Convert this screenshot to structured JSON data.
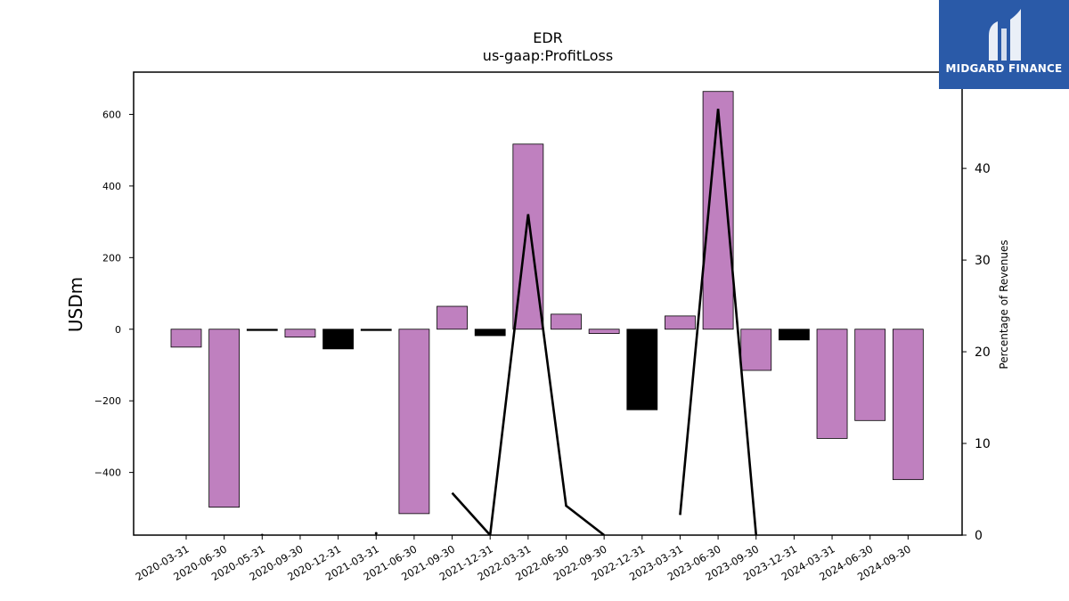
{
  "chart_data": {
    "type": "bar",
    "title": "EDR",
    "subtitle": "us-gaap:ProfitLoss",
    "ylabel": "USDm",
    "y2label": "Percentage of Revenues",
    "ylim": [
      -575,
      718
    ],
    "y2lim": [
      0,
      50.5
    ],
    "yticks": [
      -400,
      -200,
      0,
      200,
      400,
      600
    ],
    "y2ticks": [
      0,
      10,
      20,
      30,
      40
    ],
    "categories": [
      "2020-03-31",
      "2020-06-30",
      "2020-05-31",
      "2020-09-30",
      "2020-12-31",
      "2021-03-31",
      "2021-06-30",
      "2021-09-30",
      "2021-12-31",
      "2022-03-31",
      "2022-06-30",
      "2022-09-30",
      "2022-12-31",
      "2023-03-31",
      "2023-06-30",
      "2023-09-30",
      "2023-12-31",
      "2024-03-31",
      "2024-06-30",
      "2024-09-30"
    ],
    "series": [
      {
        "values": [
          -50,
          -497,
          0,
          -22,
          -55,
          0,
          -515,
          64,
          -18,
          517,
          42,
          -12,
          -225,
          37,
          664,
          -115,
          -30,
          -305,
          -255,
          -420
        ],
        "colors": [
          "#bf80bf",
          "#bf80bf",
          "#000000",
          "#bf80bf",
          "#000000",
          "#000000",
          "#bf80bf",
          "#bf80bf",
          "#000000",
          "#bf80bf",
          "#bf80bf",
          "#bf80bf",
          "#000000",
          "#bf80bf",
          "#bf80bf",
          "#bf80bf",
          "#000000",
          "#bf80bf",
          "#bf80bf",
          "#bf80bf"
        ]
      },
      {
        "type": "line",
        "axis": "right",
        "values": [
          null,
          null,
          0,
          null,
          null,
          0.2,
          null,
          4.6,
          0,
          35,
          3.2,
          0,
          null,
          2.2,
          46.5,
          0,
          null,
          null,
          null,
          null
        ]
      }
    ],
    "colors": {
      "positive": "#bf80bf",
      "negative": "#000000",
      "line": "#000000"
    }
  },
  "logo": {
    "text": "MIDGARD FINANCE",
    "bg": "#2a5aa8"
  }
}
